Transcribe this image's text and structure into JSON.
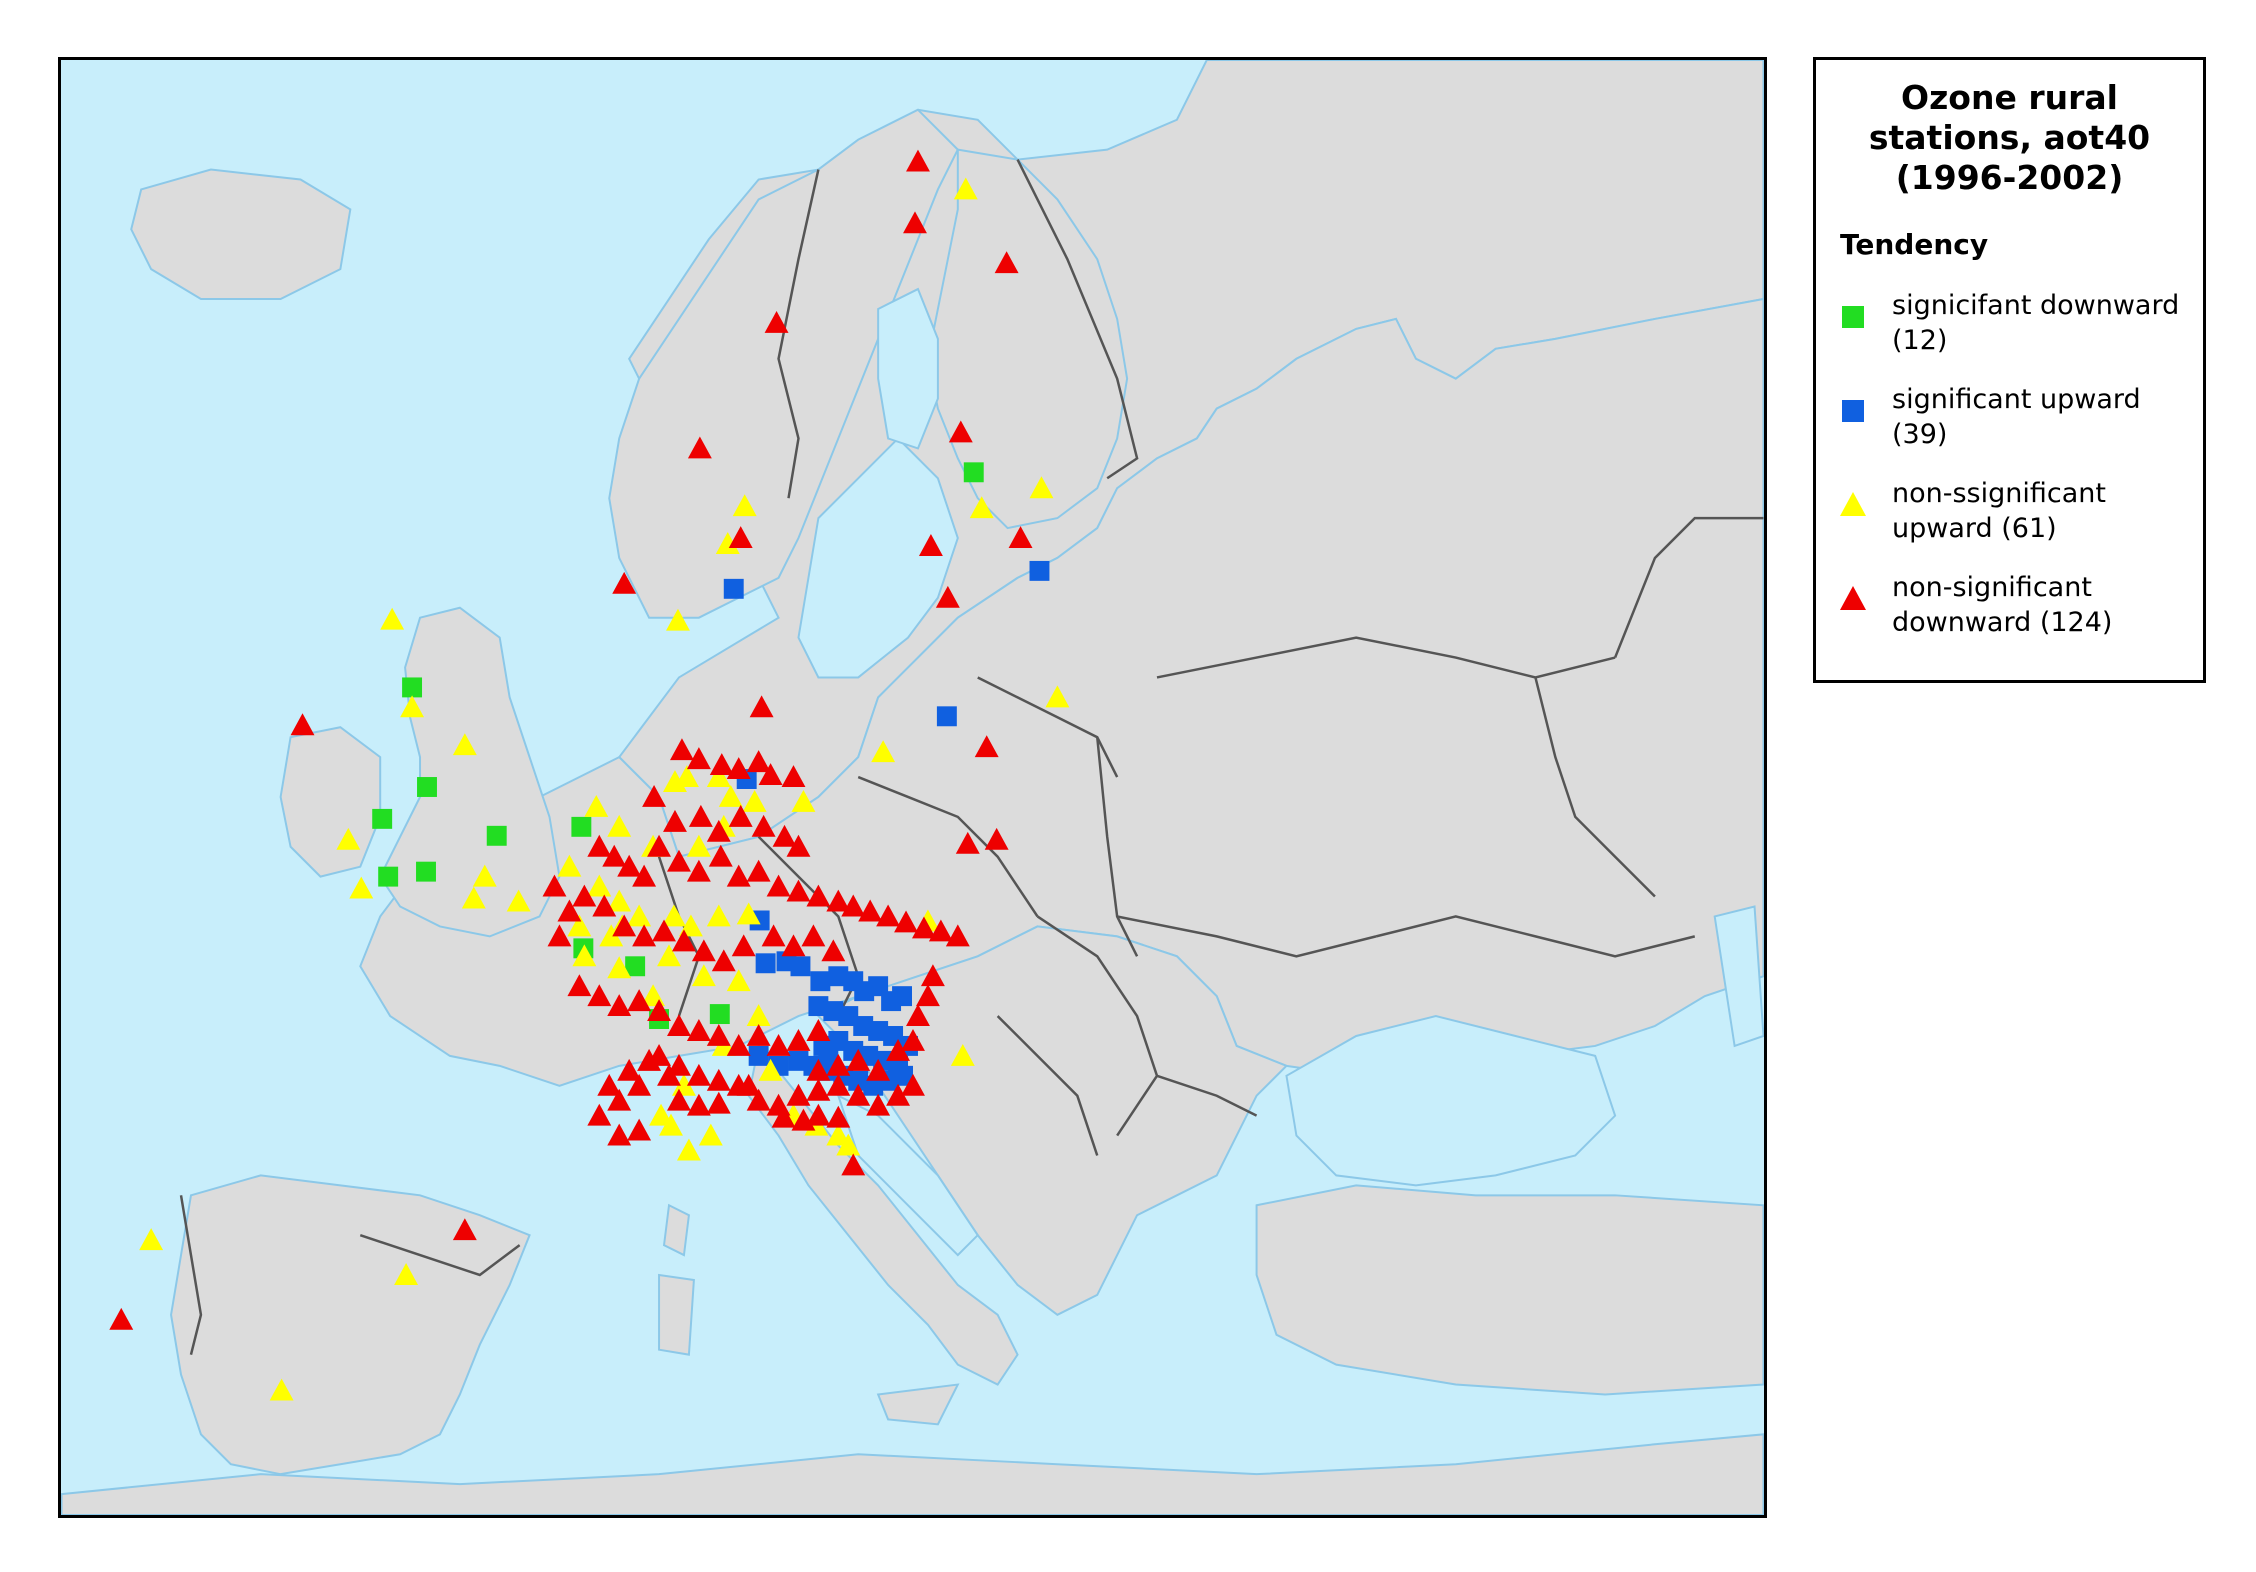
{
  "legend": {
    "title_lines": [
      "Ozone rural",
      "stations, aot40",
      "(1996-2002)"
    ],
    "subtitle": "Tendency",
    "items": [
      {
        "key": "sig_down",
        "line1": "signicifant downward",
        "line2": "(12)",
        "shape": "square",
        "color": "#22dd22"
      },
      {
        "key": "sig_up",
        "line1": "significant upward",
        "line2": "(39)",
        "shape": "square",
        "color": "#1060e0"
      },
      {
        "key": "nonsig_up",
        "line1": "non-ssignificant",
        "line2": "upward (61)",
        "shape": "triangle",
        "color": "#ffff00"
      },
      {
        "key": "nonsig_down",
        "line1": "non-significant",
        "line2": "downward (124)",
        "shape": "triangle",
        "color": "#ee0000"
      }
    ]
  },
  "map": {
    "sea_color": "#c8eefb",
    "land_color": "#dcdcdc",
    "border_color": "#555555",
    "coast_color": "#8cc8e8"
  }
}
